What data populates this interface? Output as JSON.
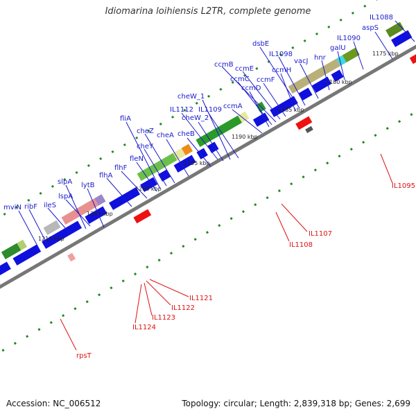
{
  "title": "Idiomarina loihiensis L2TR, complete genome",
  "footer": {
    "accession": "Accession: NC_006512",
    "summary": "Topology: circular; Length: 2,839,318 bp; Genes: 2,699"
  },
  "colors": {
    "forward_label": "#1a1acc",
    "reverse_label": "#dd1111",
    "forward_gene": "#1010dd",
    "reverse_gene": "#ee1111",
    "backbone": "#777777",
    "tick": "#228822"
  },
  "ticks": [
    "1175 kbp",
    "1180 kbp",
    "1185 kbp",
    "1190 kbp",
    "1195 kbp",
    "1200 kbp",
    "1205 kbp",
    "1210 kbp"
  ],
  "forward_genes": [
    "IL1088",
    "aspS",
    "IL1090",
    "galU",
    "hnr",
    "vacJ",
    "IL1098",
    "dsbE",
    "ccmH",
    "ccmF",
    "ccmE",
    "ccmB",
    "ccmC",
    "ccmD",
    "ccmA",
    "IL1109",
    "IL1112",
    "cheW_1",
    "cheW_2",
    "cheB",
    "cheA",
    "cheZ",
    "cheY",
    "fliA",
    "fleN",
    "flhF",
    "flhA",
    "lytB",
    "lspA",
    "slpA",
    "ileS",
    "ribF",
    "mviN"
  ],
  "reverse_genes": [
    "IL1095",
    "IL1107",
    "IL1108",
    "IL1121",
    "IL1122",
    "IL1123",
    "IL1124",
    "rpsT"
  ]
}
